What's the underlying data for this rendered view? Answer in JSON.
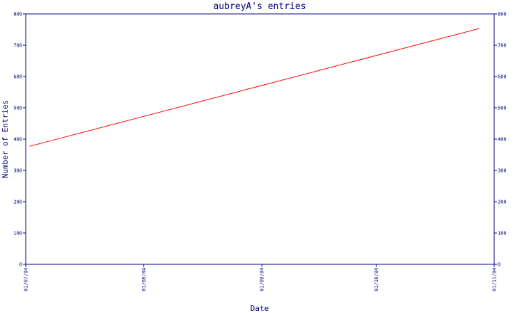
{
  "chart_data": {
    "type": "line",
    "title": "aubreyA's entries",
    "xlabel": "Date",
    "ylabel": "Number of Entries",
    "x_tick_labels": [
      "01/07/04",
      "01/08/04",
      "01/09/04",
      "01/10/04",
      "01/11/04"
    ],
    "x_range": [
      "01/07/04",
      "01/11/04"
    ],
    "y_ticks": [
      0,
      100,
      200,
      300,
      400,
      500,
      600,
      700,
      800
    ],
    "ylim": [
      0,
      800
    ],
    "grid": false,
    "right_axis_mirrors_left": true,
    "series": [
      {
        "x": [
          "2004-07-02",
          "2004-10-28"
        ],
        "y": [
          377,
          753
        ],
        "color": "#ff0000"
      }
    ]
  },
  "colors": {
    "axis": "#000080",
    "line": "#ff0000",
    "background": "#ffffff"
  }
}
